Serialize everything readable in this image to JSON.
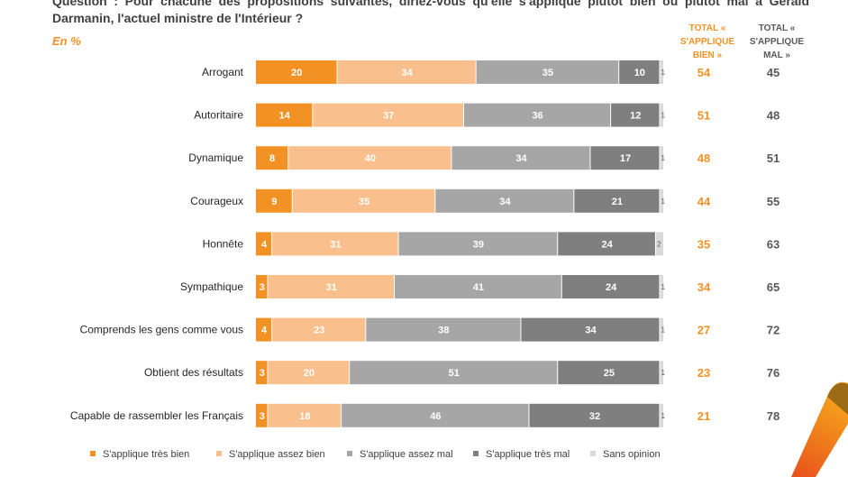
{
  "question": "Question : Pour chacune des propositions suivantes, diriez-vous qu'elle s'applique plutôt bien ou plutôt mal à Gérald Darmanin, l'actuel ministre de l'Intérieur ?",
  "unit_label": "En %",
  "columns": {
    "bien": "TOTAL « S'APPLIQUE BIEN »",
    "mal": "TOTAL « S'APPLIQUE MAL »"
  },
  "colors": {
    "tres_bien": "#f39224",
    "assez_bien": "#f9c08e",
    "assez_mal": "#a6a6a6",
    "tres_mal": "#7f7f7f",
    "sans_opinion": "#d9d9d9",
    "bien_total": "#f39224",
    "mal_total": "#595959"
  },
  "chart_data": {
    "type": "bar",
    "orientation": "horizontal",
    "stacked": true,
    "categories": [
      "Arrogant",
      "Autoritaire",
      "Dynamique",
      "Courageux",
      "Honnête",
      "Sympathique",
      "Comprends les gens comme vous",
      "Obtient des résultats",
      "Capable de rassembler les Français"
    ],
    "series": [
      {
        "name": "S'applique très bien",
        "values": [
          20,
          14,
          8,
          9,
          4,
          3,
          4,
          3,
          3
        ]
      },
      {
        "name": "S'applique assez bien",
        "values": [
          34,
          37,
          40,
          35,
          31,
          31,
          23,
          20,
          18
        ]
      },
      {
        "name": "S'applique assez mal",
        "values": [
          35,
          36,
          34,
          34,
          39,
          41,
          38,
          51,
          46
        ]
      },
      {
        "name": "S'applique très mal",
        "values": [
          10,
          12,
          17,
          21,
          24,
          24,
          34,
          25,
          32
        ]
      },
      {
        "name": "Sans opinion",
        "values": [
          1,
          1,
          1,
          1,
          2,
          1,
          1,
          1,
          1
        ]
      }
    ],
    "total_bien": [
      54,
      51,
      48,
      44,
      35,
      34,
      27,
      23,
      21
    ],
    "total_mal": [
      45,
      48,
      51,
      55,
      63,
      65,
      72,
      76,
      78
    ],
    "xlim": [
      0,
      100
    ],
    "legend_position": "bottom",
    "grid": false
  }
}
